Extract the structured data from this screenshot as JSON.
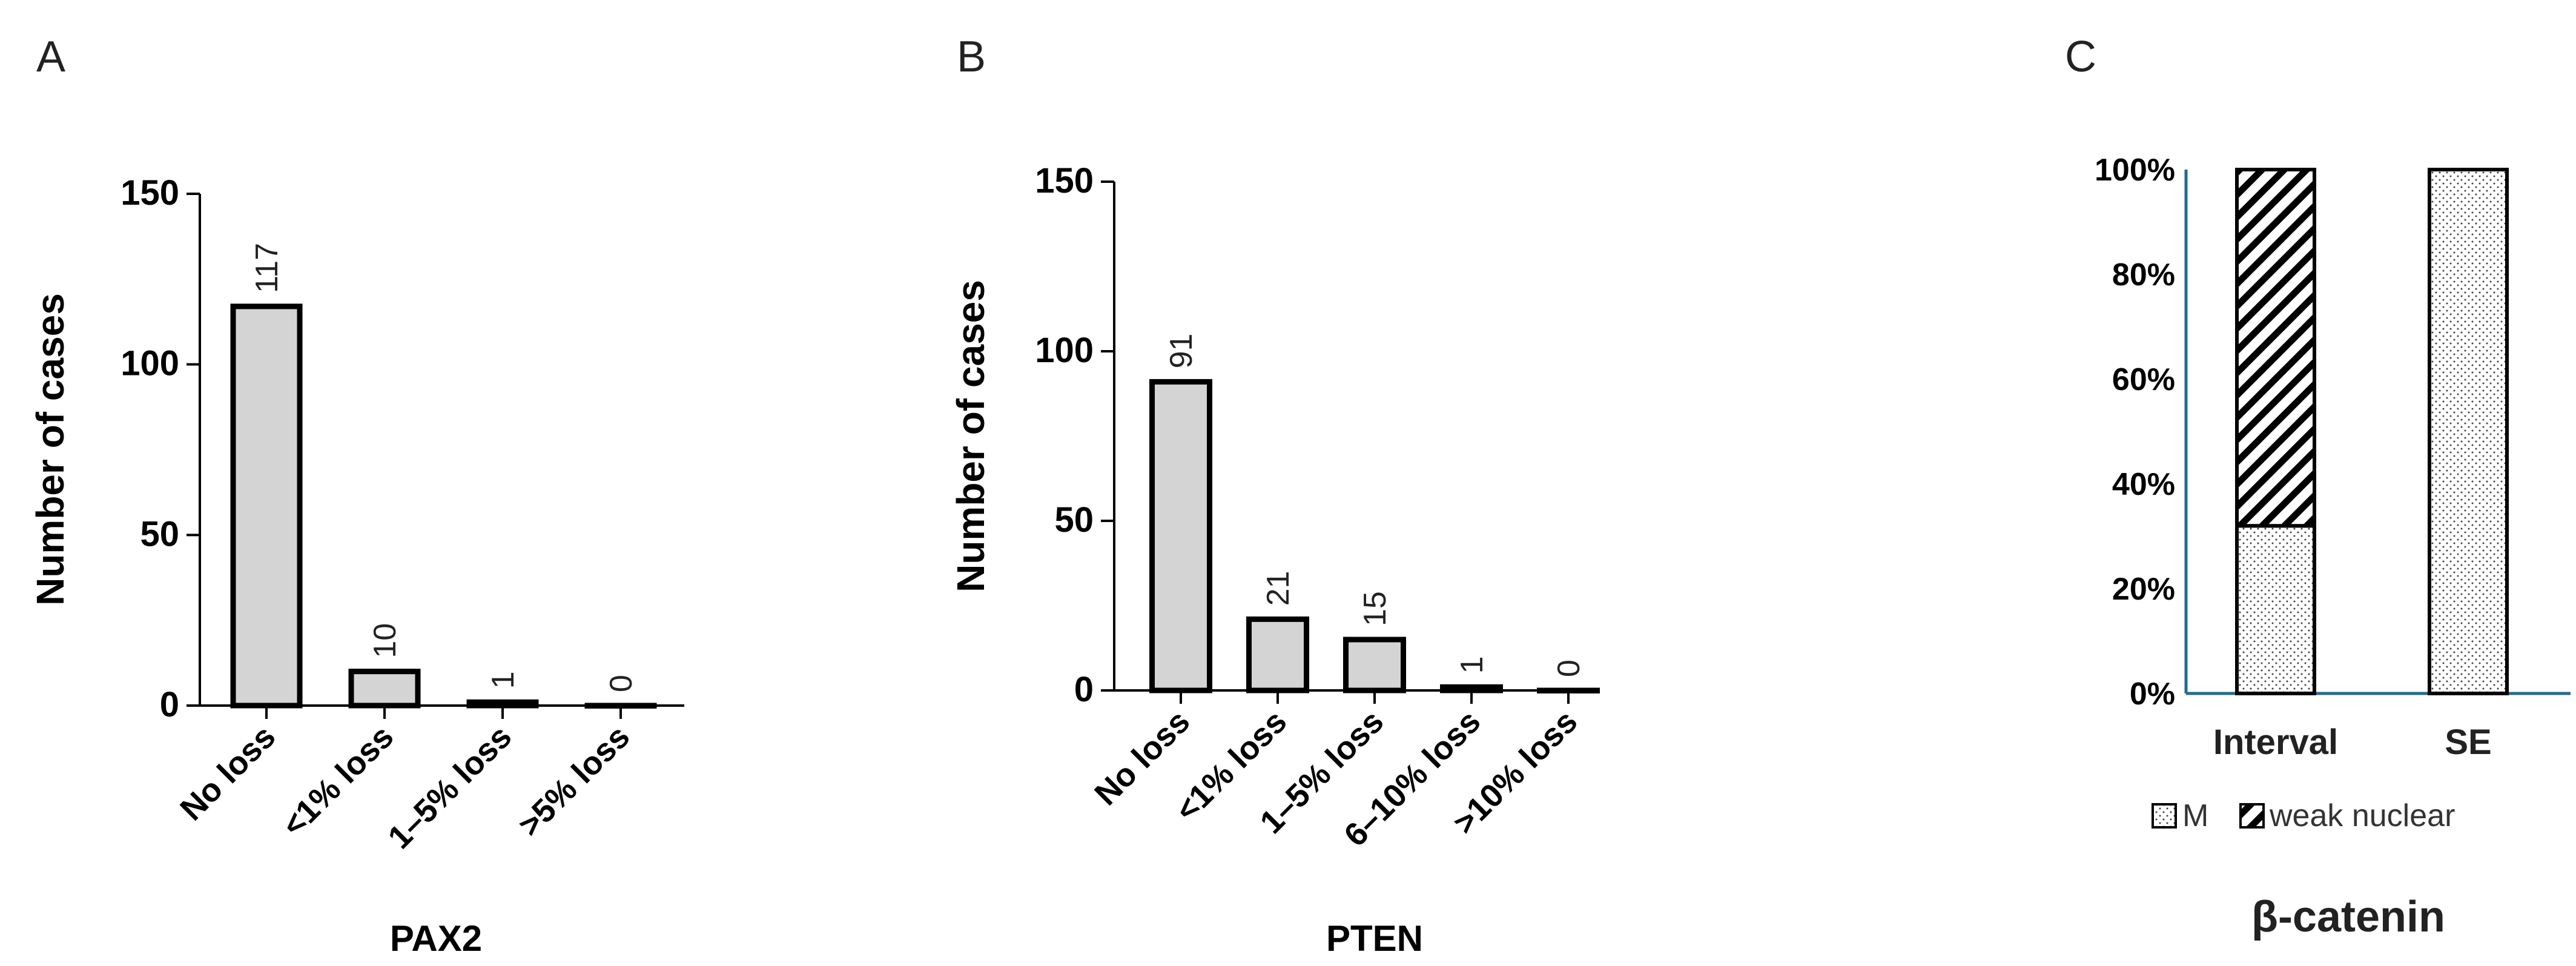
{
  "figure": {
    "panels": [
      {
        "id": "A",
        "label": "A"
      },
      {
        "id": "B",
        "label": "B"
      },
      {
        "id": "C",
        "label": "C"
      }
    ]
  },
  "chart_data": [
    {
      "panel": "A",
      "type": "bar",
      "title": "",
      "xlabel": "PAX2",
      "ylabel": "Number of cases",
      "categories": [
        "No loss",
        "<1% loss",
        "1–5% loss",
        ">5% loss"
      ],
      "values": [
        117,
        10,
        1,
        0
      ],
      "data_labels": [
        "117",
        "10",
        "1",
        "0"
      ],
      "ylim": [
        0,
        150
      ],
      "yticks": [
        0,
        50,
        100,
        150
      ],
      "ytick_labels": [
        "0",
        "50",
        "100",
        "150"
      ],
      "bar_fill": "#d4d4d4",
      "bar_stroke": "#000000"
    },
    {
      "panel": "B",
      "type": "bar",
      "title": "",
      "xlabel": "PTEN",
      "ylabel": "Number of cases",
      "categories": [
        "No loss",
        "<1% loss",
        "1–5% loss",
        "6–10% loss",
        ">10% loss"
      ],
      "values": [
        91,
        21,
        15,
        1,
        0
      ],
      "data_labels": [
        "91",
        "21",
        "15",
        "1",
        "0"
      ],
      "ylim": [
        0,
        150
      ],
      "yticks": [
        0,
        50,
        100,
        150
      ],
      "ytick_labels": [
        "0",
        "50",
        "100",
        "150"
      ],
      "bar_fill": "#d4d4d4",
      "bar_stroke": "#000000"
    },
    {
      "panel": "C",
      "type": "bar",
      "stacked": true,
      "title": "β-catenin",
      "xlabel": "",
      "ylabel": "",
      "categories": [
        "Interval",
        "SE"
      ],
      "series": [
        {
          "name": "M",
          "values": [
            32,
            100
          ],
          "pattern": "dots"
        },
        {
          "name": "weak nuclear",
          "values": [
            68,
            0
          ],
          "pattern": "diagonal-hatch"
        }
      ],
      "ylim": [
        0,
        100
      ],
      "yticks": [
        0,
        20,
        40,
        60,
        80,
        100
      ],
      "ytick_labels": [
        "0%",
        "20%",
        "40%",
        "60%",
        "80%",
        "100%"
      ],
      "axis_color": "#1f6e8c",
      "legend": {
        "placement": "bottom",
        "entries": [
          "M",
          "weak nuclear"
        ]
      }
    }
  ]
}
